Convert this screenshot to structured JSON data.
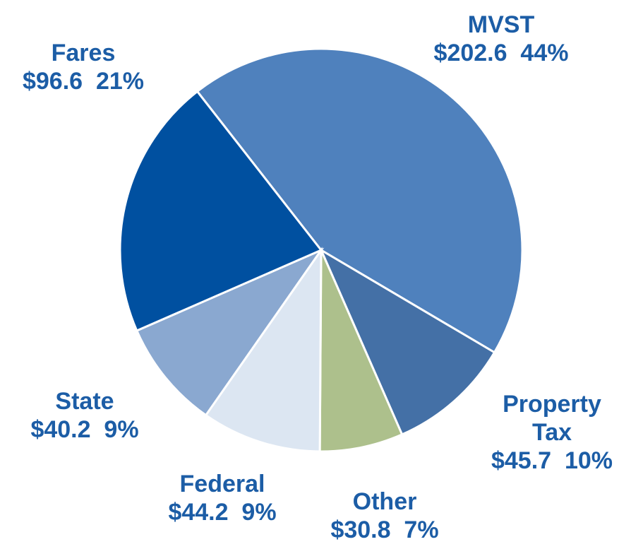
{
  "chart_data": {
    "type": "pie",
    "categories": [
      "MVST",
      "Property Tax",
      "Other",
      "Federal",
      "State",
      "Fares"
    ],
    "values": [
      202.6,
      45.7,
      30.8,
      44.2,
      40.2,
      96.6
    ],
    "value_labels": [
      "$202.6  44%",
      "$45.7  10%",
      "$30.8  7%",
      "$44.2  9%",
      "$40.2  9%",
      "$96.6  21%"
    ],
    "colors": [
      "#4f81bd",
      "#4470a6",
      "#adc08c",
      "#dce6f2",
      "#8aa8d0",
      "#0050a0"
    ]
  }
}
